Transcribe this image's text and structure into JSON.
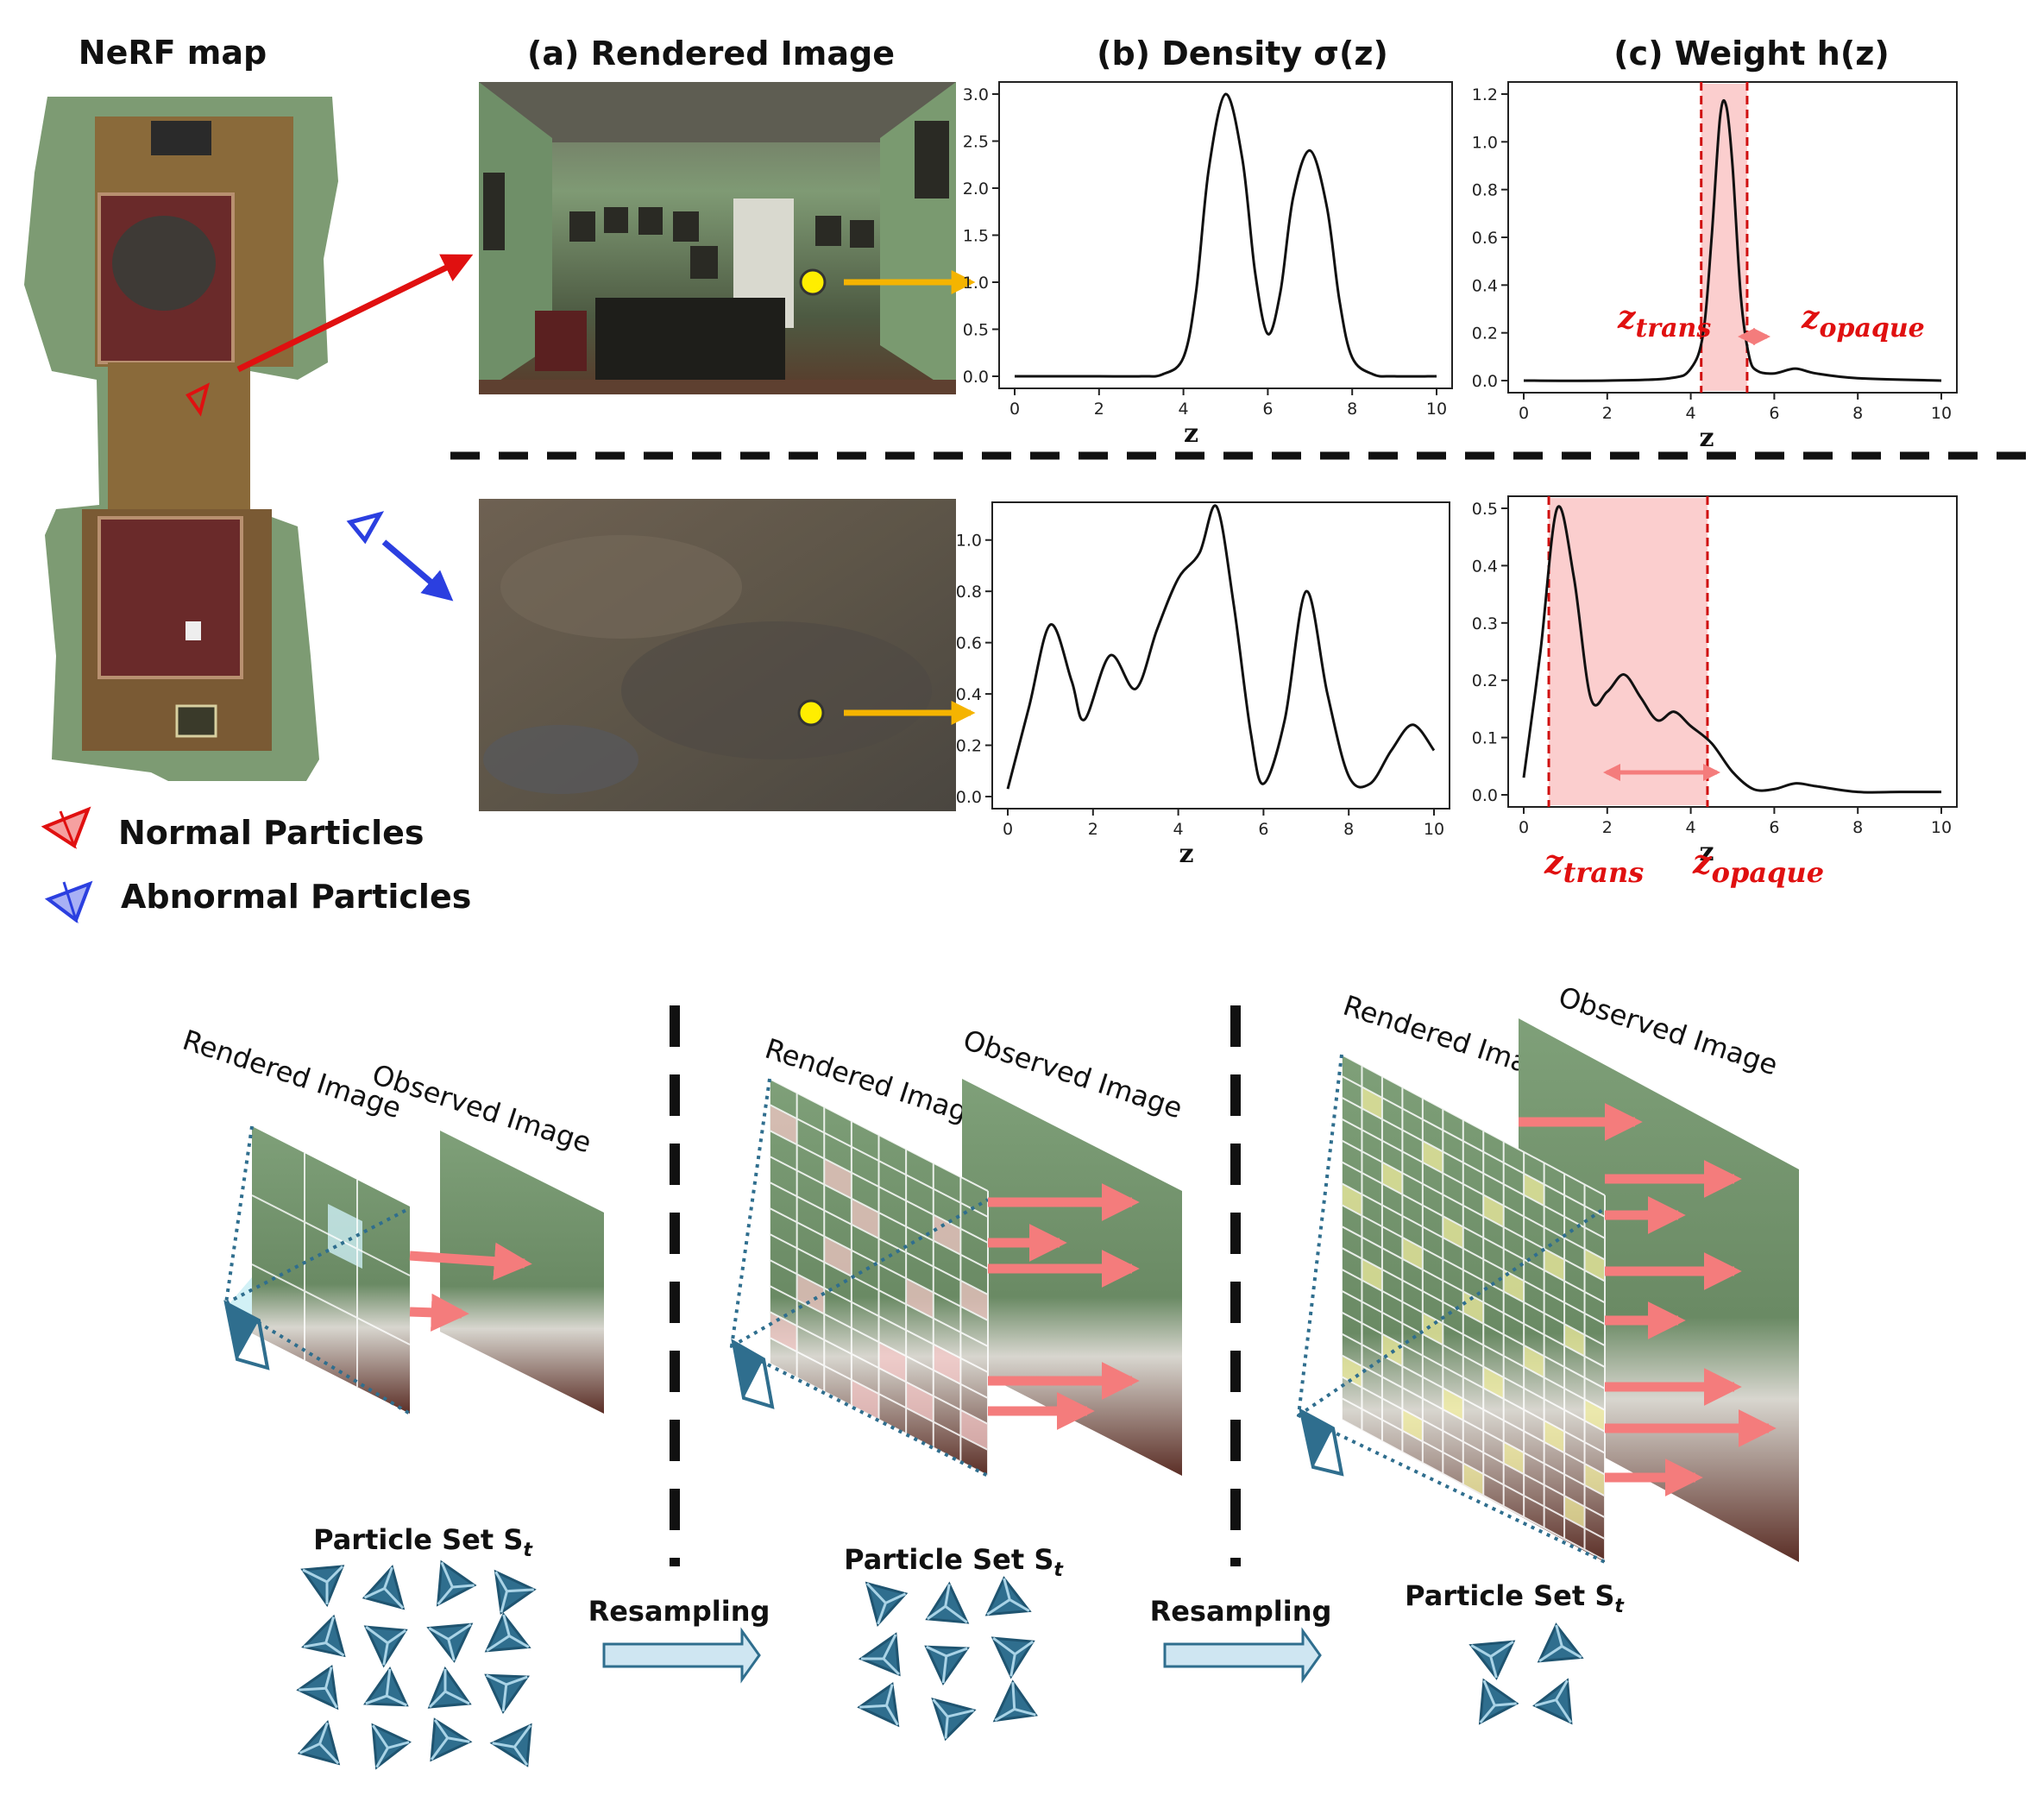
{
  "titles": {
    "map": "NeRF map",
    "rendered": "(a) Rendered Image",
    "density": "(b) Density σ(z)",
    "weight": "(c) Weight h(z)"
  },
  "legend": {
    "normal": "Normal Particles",
    "abnormal": "Abnormal Particles"
  },
  "labels": {
    "z_trans": "z",
    "trans_sub": "trans",
    "z_opaque": "z",
    "opaque_sub": "opaque",
    "rendered_image": "Rendered Image",
    "observed_image": "Observed Image",
    "particle_set": "Particle Set S",
    "particle_sub": "t",
    "resampling": "Resampling"
  },
  "colors": {
    "red": "#e01010",
    "blue": "#2b3fe0",
    "orange": "#f5b400",
    "teal": "#2f6e8e",
    "pink": "#f7a6a6",
    "wall": "#8fb08a"
  },
  "chart_data": [
    {
      "id": "density-top",
      "type": "line",
      "xlabel": "z",
      "xlim": [
        0,
        10
      ],
      "ylim": [
        0,
        3.0
      ],
      "xticks": [
        "0",
        "2",
        "4",
        "6",
        "8",
        "10"
      ],
      "yticks": [
        "0.0",
        "0.5",
        "1.0",
        "1.5",
        "2.0",
        "2.5",
        "3.0"
      ],
      "x": [
        0,
        1,
        2,
        3,
        3.5,
        4,
        4.3,
        4.6,
        5.0,
        5.4,
        5.7,
        6.0,
        6.3,
        6.6,
        7.0,
        7.4,
        7.7,
        8.0,
        8.5,
        9,
        10
      ],
      "y": [
        0,
        0,
        0,
        0,
        0.02,
        0.2,
        0.9,
        2.2,
        3.0,
        2.3,
        1.1,
        0.45,
        0.9,
        1.9,
        2.4,
        1.8,
        0.8,
        0.2,
        0.02,
        0,
        0
      ]
    },
    {
      "id": "weight-top",
      "type": "line",
      "xlabel": "z",
      "xlim": [
        0,
        10
      ],
      "ylim": [
        0,
        1.2
      ],
      "xticks": [
        "0",
        "2",
        "4",
        "6",
        "8",
        "10"
      ],
      "yticks": [
        "0.0",
        "0.2",
        "0.4",
        "0.6",
        "0.8",
        "1.0",
        "1.2"
      ],
      "x": [
        0,
        2,
        3.5,
        4.0,
        4.3,
        4.5,
        4.7,
        4.85,
        5.0,
        5.2,
        5.4,
        5.6,
        6.0,
        6.5,
        7.0,
        8,
        10
      ],
      "y": [
        0,
        0,
        0.01,
        0.05,
        0.2,
        0.6,
        1.1,
        1.15,
        0.9,
        0.35,
        0.1,
        0.04,
        0.03,
        0.05,
        0.03,
        0.01,
        0
      ],
      "highlight": [
        4.25,
        5.35
      ]
    },
    {
      "id": "density-bottom",
      "type": "line",
      "xlabel": "z",
      "xlim": [
        0,
        10
      ],
      "ylim": [
        0,
        1.1
      ],
      "xticks": [
        "0",
        "2",
        "4",
        "6",
        "8",
        "10"
      ],
      "yticks": [
        "0.0",
        "0.2",
        "0.4",
        "0.6",
        "0.8",
        "1.0"
      ],
      "x": [
        0,
        0.5,
        1.0,
        1.5,
        1.8,
        2.4,
        3.0,
        3.5,
        4.0,
        4.5,
        4.9,
        5.3,
        5.7,
        6.0,
        6.5,
        7.0,
        7.5,
        8.0,
        8.5,
        9.0,
        9.5,
        10
      ],
      "y": [
        0.03,
        0.35,
        0.67,
        0.45,
        0.3,
        0.55,
        0.42,
        0.65,
        0.85,
        0.95,
        1.13,
        0.75,
        0.25,
        0.05,
        0.3,
        0.8,
        0.4,
        0.08,
        0.05,
        0.18,
        0.28,
        0.18
      ]
    },
    {
      "id": "weight-bottom",
      "type": "line",
      "xlabel": "z",
      "xlim": [
        0,
        10
      ],
      "ylim": [
        0,
        0.5
      ],
      "xticks": [
        "0",
        "2",
        "4",
        "6",
        "8",
        "10"
      ],
      "yticks": [
        "0.0",
        "0.1",
        "0.2",
        "0.3",
        "0.4",
        "0.5"
      ],
      "x": [
        0,
        0.4,
        0.8,
        1.2,
        1.6,
        2.0,
        2.4,
        2.8,
        3.2,
        3.6,
        4.0,
        4.5,
        5.0,
        5.5,
        6.0,
        6.5,
        7.0,
        8,
        9,
        10
      ],
      "y": [
        0.03,
        0.25,
        0.5,
        0.38,
        0.17,
        0.18,
        0.21,
        0.17,
        0.13,
        0.145,
        0.12,
        0.09,
        0.04,
        0.01,
        0.01,
        0.02,
        0.015,
        0.005,
        0.005,
        0.005
      ],
      "highlight": [
        0.6,
        4.4
      ]
    }
  ]
}
